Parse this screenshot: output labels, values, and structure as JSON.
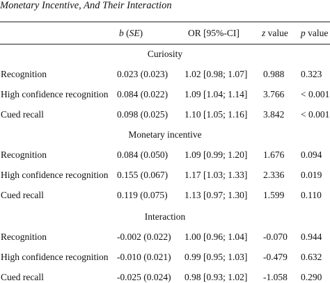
{
  "caption": "Monetary Incentive, And Their Interaction",
  "header": {
    "b_label": "b",
    "b_suffix_open": " (",
    "b_se": "SE",
    "b_suffix_close": ")",
    "or_ci": "OR [95%-CI]",
    "z_label": "z",
    "z_suffix": " value",
    "p_label": "p",
    "p_suffix": " value"
  },
  "sections": [
    {
      "title": "Curiosity",
      "rows": [
        {
          "label": "Recognition",
          "b": "0.023 (0.023)",
          "or": "1.02 [0.98; 1.07]",
          "z": "0.988",
          "p": "0.323"
        },
        {
          "label": "High confidence recognition",
          "b": "0.084 (0.022)",
          "or": "1.09 [1.04; 1.14]",
          "z": "3.766",
          "p": "< 0.001"
        },
        {
          "label": "Cued recall",
          "b": "0.098 (0.025)",
          "or": "1.10 [1.05; 1.16]",
          "z": "3.842",
          "p": "< 0.001"
        }
      ]
    },
    {
      "title": "Monetary incentive",
      "rows": [
        {
          "label": "Recognition",
          "b": "0.084 (0.050)",
          "or": "1.09 [0.99; 1.20]",
          "z": "1.676",
          "p": "0.094"
        },
        {
          "label": "High confidence recognition",
          "b": "0.155 (0.067)",
          "or": "1.17 [1.03; 1.33]",
          "z": "2.336",
          "p": "0.019"
        },
        {
          "label": "Cued recall",
          "b": "0.119 (0.075)",
          "or": "1.13 [0.97; 1.30]",
          "z": "1.599",
          "p": "0.110"
        }
      ]
    },
    {
      "title": "Interaction",
      "rows": [
        {
          "label": "Recognition",
          "b": "-0.002 (0.022)",
          "or": "1.00 [0.96; 1.04]",
          "z": "-0.070",
          "p": "0.944"
        },
        {
          "label": "High confidence recognition",
          "b": "-0.010 (0.021)",
          "or": "0.99 [0.95; 1.03]",
          "z": "-0.479",
          "p": "0.632"
        },
        {
          "label": "Cued recall",
          "b": "-0.025 (0.024)",
          "or": "0.98 [0.93; 1.02]",
          "z": "-1.058",
          "p": "0.290"
        }
      ]
    }
  ]
}
